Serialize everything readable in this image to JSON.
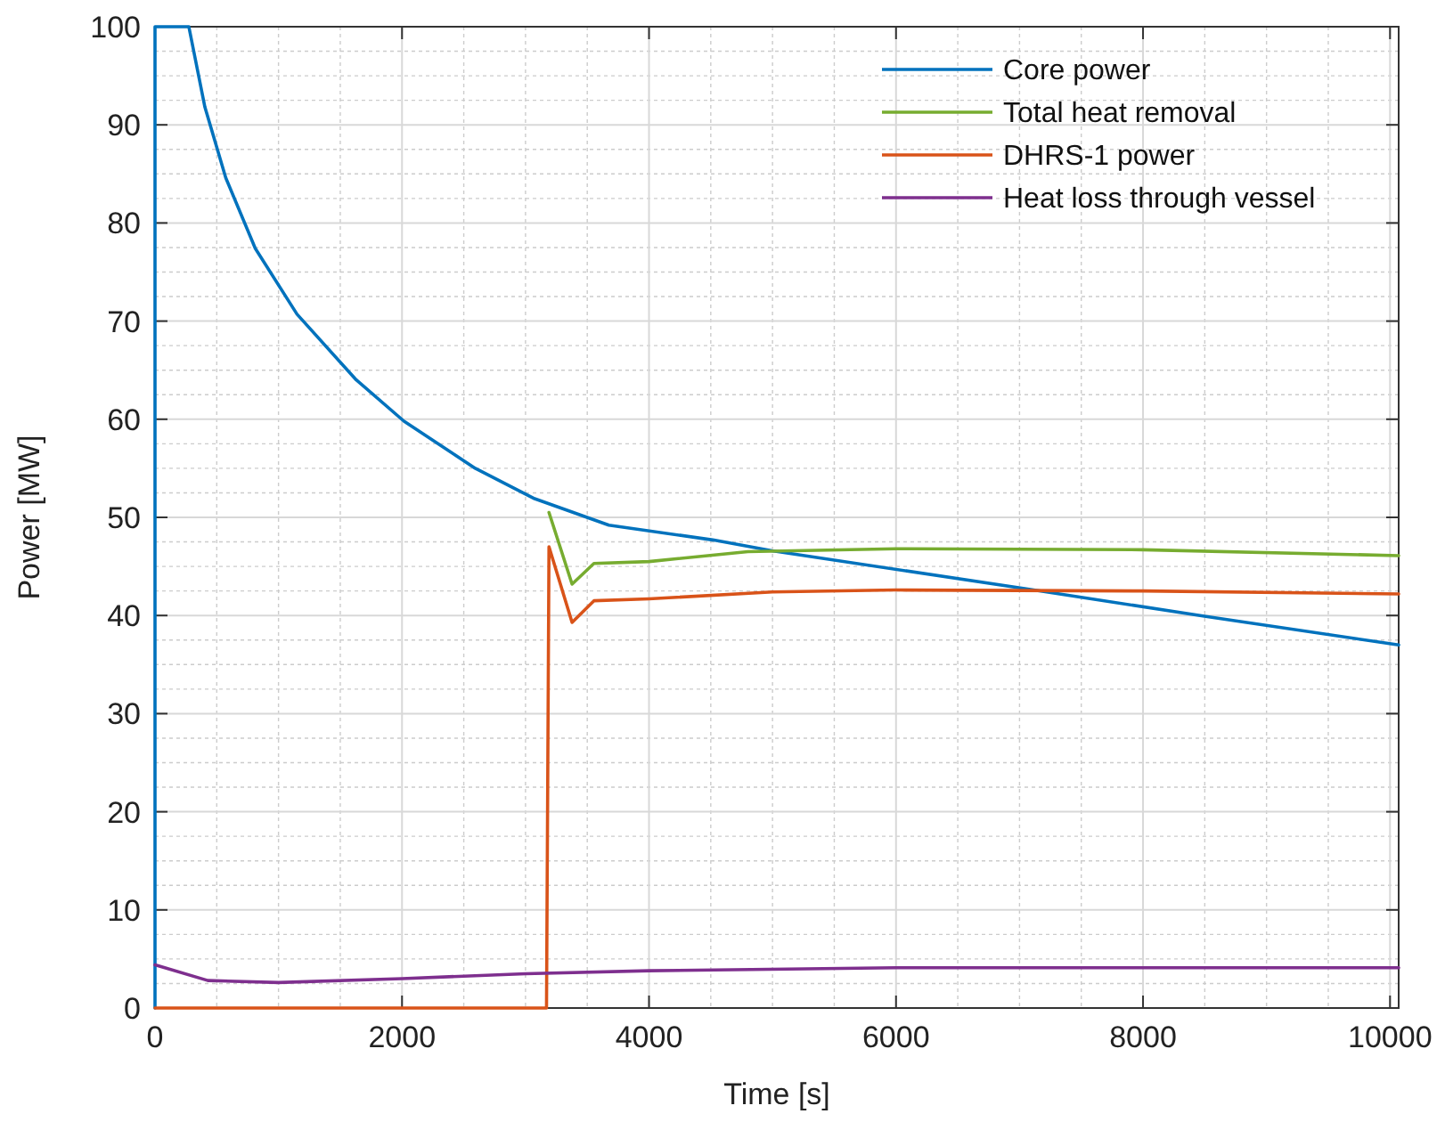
{
  "chart_data": {
    "type": "line",
    "xlabel": "Time [s]",
    "ylabel": "Power [MW]",
    "xlim": [
      0,
      10070
    ],
    "ylim": [
      0,
      100
    ],
    "xticks": [
      0,
      2000,
      4000,
      6000,
      8000,
      10000
    ],
    "yticks": [
      0,
      10,
      20,
      30,
      40,
      50,
      60,
      70,
      80,
      90,
      100
    ],
    "grid": true,
    "legend": "top right",
    "line_style": "solid",
    "marker": "none",
    "series": [
      {
        "name": "Core power",
        "color": "#0072bd",
        "x": [
          0,
          0,
          274,
          404,
          573,
          812,
          1150,
          1630,
          2016,
          2593,
          3074,
          3675,
          4517,
          4996,
          7114,
          8509,
          10070
        ],
        "values": [
          0,
          100,
          100,
          91.8,
          84.6,
          77.4,
          70.7,
          64.0,
          59.8,
          55.0,
          51.9,
          49.2,
          47.7,
          46.6,
          42.6,
          39.9,
          37.0
        ]
      },
      {
        "name": "Total heat removal",
        "color": "#77ac30",
        "x": [
          3190,
          3377,
          3554,
          4000,
          4800,
          6000,
          8000,
          10070
        ],
        "values": [
          50.5,
          43.2,
          45.3,
          45.5,
          46.5,
          46.8,
          46.7,
          46.1
        ]
      },
      {
        "name": "DHRS-1 power",
        "color": "#d95319",
        "x": [
          0,
          3170,
          3190,
          3377,
          3554,
          4000,
          5000,
          6000,
          8000,
          10070
        ],
        "values": [
          0,
          0,
          47,
          39.3,
          41.5,
          41.7,
          42.4,
          42.6,
          42.5,
          42.2
        ]
      },
      {
        "name": "Heat loss through vessel",
        "color": "#7e2f8e",
        "x": [
          0,
          428,
          1000,
          2000,
          3000,
          4000,
          6000,
          8000,
          10070
        ],
        "values": [
          4.4,
          2.8,
          2.6,
          3.0,
          3.5,
          3.8,
          4.1,
          4.1,
          4.1
        ]
      }
    ]
  }
}
